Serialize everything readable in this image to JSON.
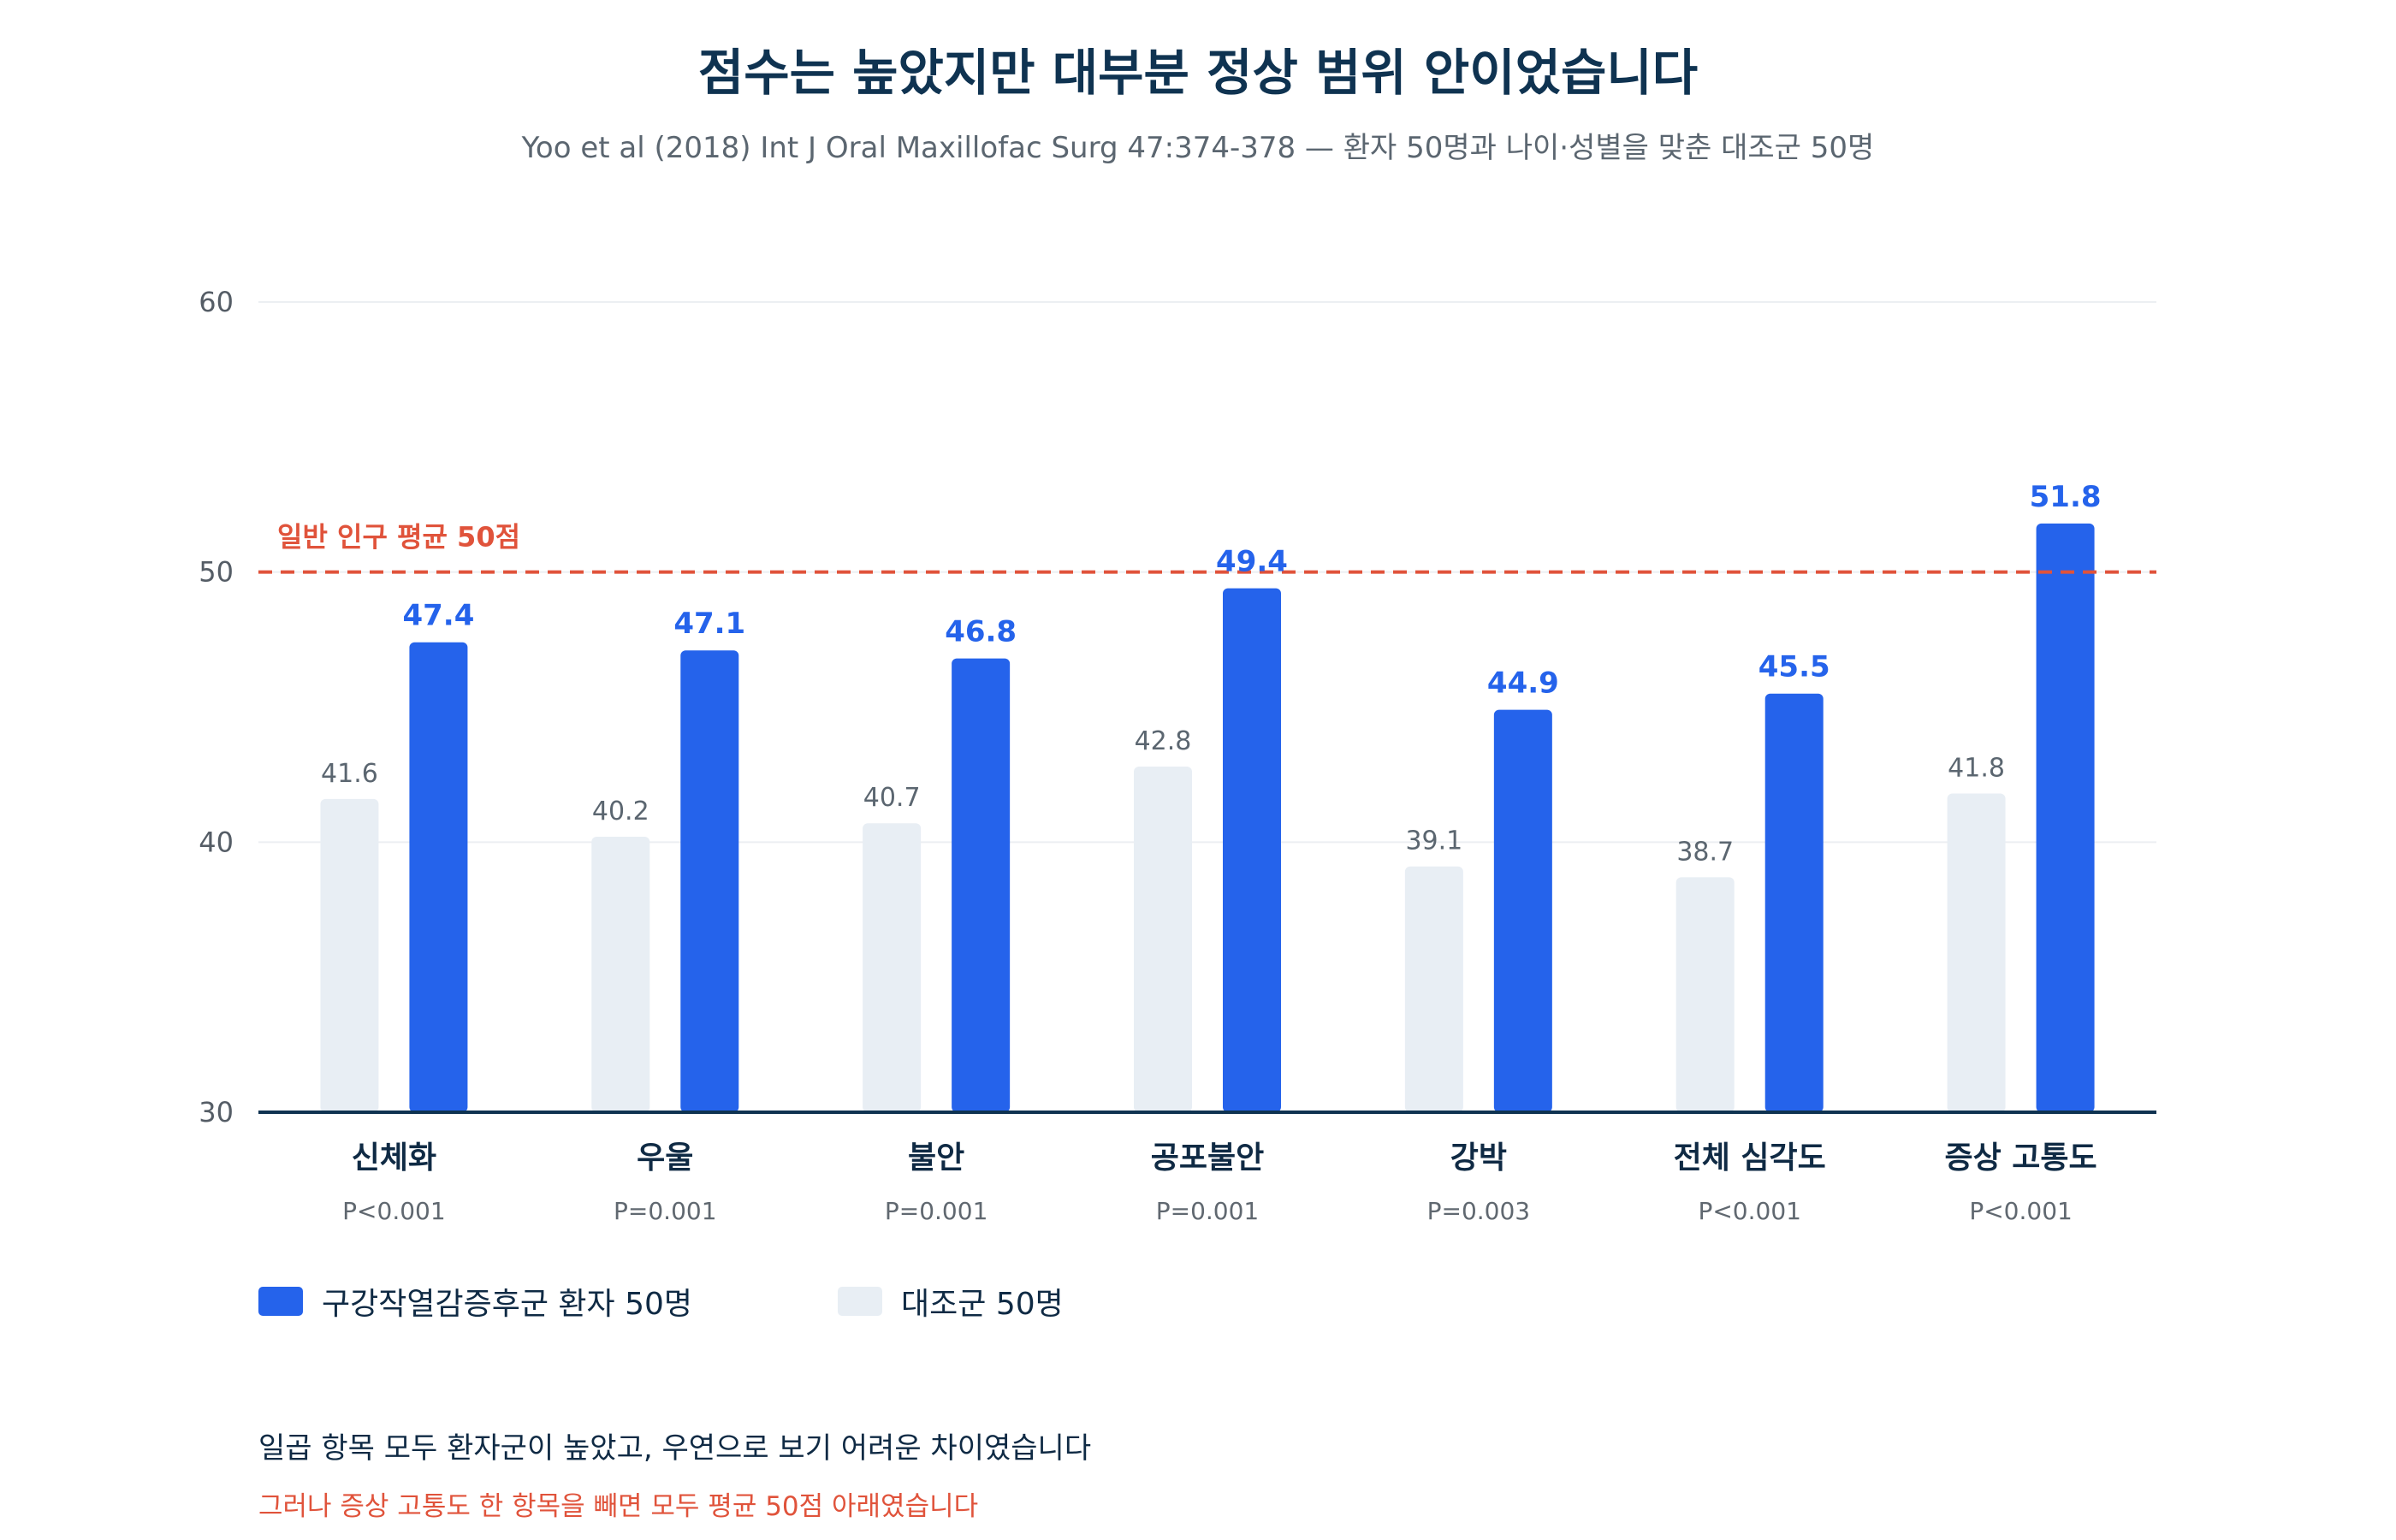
{
  "chart_data": {
    "type": "bar",
    "title": "점수는 높았지만 대부분 정상 범위 안이었습니다",
    "subtitle": "Yoo et al (2018) Int J Oral Maxillofac Surg 47:374-378 — 환자 50명과 나이·성별을 맞춘 대조군 50명",
    "categories": [
      "신체화",
      "우울",
      "불안",
      "공포불안",
      "강박",
      "전체 심각도",
      "증상 고통도"
    ],
    "p_values": [
      "P<0.001",
      "P=0.001",
      "P=0.001",
      "P=0.001",
      "P=0.003",
      "P<0.001",
      "P<0.001"
    ],
    "series": [
      {
        "name": "대조군 50명",
        "values": [
          41.6,
          40.2,
          40.7,
          42.8,
          39.1,
          38.7,
          41.8
        ],
        "color": "#e8eef4"
      },
      {
        "name": "구강작열감증후군 환자 50명",
        "values": [
          47.4,
          47.1,
          46.8,
          49.4,
          44.9,
          45.5,
          51.8
        ],
        "color": "#2563eb"
      }
    ],
    "ylim": [
      30,
      60
    ],
    "yticks": [
      30,
      40,
      50,
      60
    ],
    "reference_line": {
      "value": 50,
      "label": "일반 인구 평균 50점",
      "color": "#e0533b"
    },
    "grid": true
  },
  "legend": {
    "patient_label": "구강작열감증후군 환자 50명",
    "control_label": "대조군 50명"
  },
  "notes": {
    "line1": "일곱 항목 모두 환자군이 높았고, 우연으로 보기 어려운 차이였습니다",
    "line2": "그러나 증상 고통도 한 항목을 빼면 모두 평균 50점 아래였습니다",
    "line2_color": "#e0533b"
  },
  "colors": {
    "axis": "#0f3351",
    "grid": "#eceff2",
    "patient_label": "#2563eb"
  }
}
